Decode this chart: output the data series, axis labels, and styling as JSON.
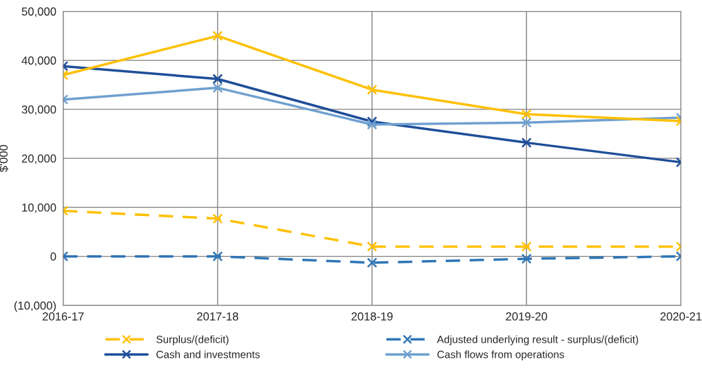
{
  "chart_data": {
    "type": "line",
    "ylabel": "$'000",
    "categories": [
      "2016-17",
      "2017-18",
      "2018-19",
      "2019-20",
      "2020-21"
    ],
    "series": [
      {
        "name": "Surplus/(deficit)",
        "color": "#ffc000",
        "line_style": "dashed",
        "values": [
          9300,
          7700,
          2000,
          2000,
          2000
        ]
      },
      {
        "name": "Adjusted underlying result - surplus/(deficit)",
        "color": "#2e75b6",
        "line_style": "dashed",
        "values": [
          0,
          0,
          -1300,
          -500,
          0
        ]
      },
      {
        "name": "Cash and investments",
        "color": "#1f4e99",
        "line_style": "solid",
        "values": [
          38800,
          36200,
          27500,
          23200,
          19200
        ]
      },
      {
        "name": "Cash flows from operations",
        "color": "#6fa0d0",
        "line_style": "solid",
        "values": [
          32000,
          34400,
          26900,
          27300,
          28300
        ]
      },
      {
        "color": "#ffc000",
        "line_style": "solid",
        "values": [
          37000,
          45000,
          34000,
          29000,
          27600
        ]
      }
    ],
    "ylim": [
      -10000,
      50000
    ],
    "yticks": [
      {
        "value": -10000,
        "label": "(10,000)"
      },
      {
        "value": 0,
        "label": "0"
      },
      {
        "value": 10000,
        "label": "10,000"
      },
      {
        "value": 20000,
        "label": "20,000"
      },
      {
        "value": 30000,
        "label": "30,000"
      },
      {
        "value": 40000,
        "label": "40,000"
      },
      {
        "value": 50000,
        "label": "50,000"
      }
    ],
    "grid": true,
    "legend": "bottom",
    "marker": "cross"
  }
}
